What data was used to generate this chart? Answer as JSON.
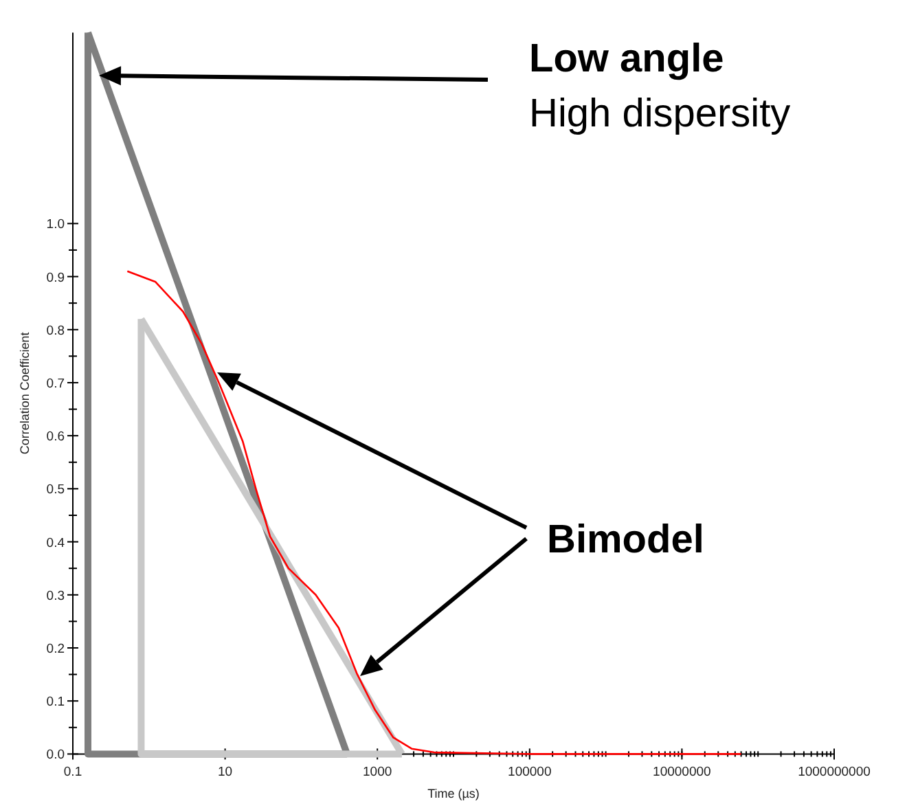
{
  "chart_data": {
    "type": "line",
    "xlabel": "Time (µs)",
    "ylabel": "Correlation Coefficient",
    "log": "x",
    "xlim": [
      0.1,
      1000000000
    ],
    "xticks": [
      0.1,
      10,
      1000,
      100000,
      10000000,
      1000000000
    ],
    "ylim": [
      0,
      1.36
    ],
    "yticks": [
      {
        "value": 0,
        "label": "0.0"
      },
      {
        "value": 0.1,
        "label": "0.1"
      },
      {
        "value": 0.2,
        "label": "0.2"
      },
      {
        "value": 0.3,
        "label": "0.3"
      },
      {
        "value": 0.4,
        "label": "0.4"
      },
      {
        "value": 0.5,
        "label": "0.5"
      },
      {
        "value": 0.6,
        "label": "0.6"
      },
      {
        "value": 0.7,
        "label": "0.7"
      },
      {
        "value": 0.8,
        "label": "0.8"
      },
      {
        "value": 0.9,
        "label": "0.9"
      },
      {
        "value": 1,
        "label": "1.0"
      }
    ],
    "grid": false,
    "legend": false,
    "marker": "none",
    "line_style": "solid",
    "series": [
      {
        "color": "#7f7f7f",
        "x": [
          0.158,
          0.158,
          400
        ],
        "values": [
          1.36,
          0,
          0
        ]
      },
      {
        "color": "#7f7f7f",
        "x": [
          0.158,
          400
        ],
        "values": [
          1.36,
          0
        ]
      },
      {
        "color": "#c8c8c8",
        "x": [
          0.79,
          0.79,
          2100
        ],
        "values": [
          0.82,
          0,
          0
        ]
      },
      {
        "color": "#c8c8c8",
        "x": [
          0.79,
          2100
        ],
        "values": [
          0.82,
          0
        ]
      },
      {
        "color": "#ff0000",
        "x": [
          0.52,
          1.22,
          2.8,
          4.9,
          8.5,
          17,
          25.7,
          39,
          68,
          155,
          310,
          537,
          933,
          1620,
          2820,
          5600,
          100000,
          1000000,
          60000000
        ],
        "values": [
          0.91,
          0.89,
          0.834,
          0.774,
          0.696,
          0.59,
          0.497,
          0.41,
          0.35,
          0.3,
          0.238,
          0.152,
          0.083,
          0.031,
          0.01,
          0.003,
          0,
          0,
          0
        ]
      }
    ],
    "annotations": [
      "Low angle",
      "High dispersity",
      "Bimodel"
    ]
  }
}
